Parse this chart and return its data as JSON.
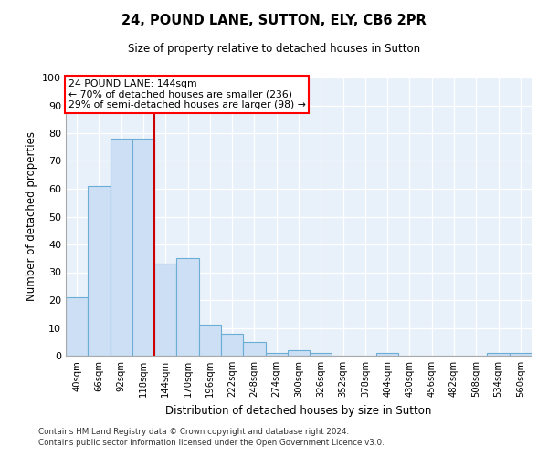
{
  "title": "24, POUND LANE, SUTTON, ELY, CB6 2PR",
  "subtitle": "Size of property relative to detached houses in Sutton",
  "xlabel": "Distribution of detached houses by size in Sutton",
  "ylabel": "Number of detached properties",
  "bar_color": "#ccdff5",
  "bar_edge_color": "#6aadd5",
  "background_color": "#e8f0fa",
  "grid_color": "#ffffff",
  "categories": [
    "40sqm",
    "66sqm",
    "92sqm",
    "118sqm",
    "144sqm",
    "170sqm",
    "196sqm",
    "222sqm",
    "248sqm",
    "274sqm",
    "300sqm",
    "326sqm",
    "352sqm",
    "378sqm",
    "404sqm",
    "430sqm",
    "456sqm",
    "482sqm",
    "508sqm",
    "534sqm",
    "560sqm"
  ],
  "values": [
    21,
    61,
    78,
    78,
    33,
    35,
    11,
    8,
    5,
    1,
    2,
    1,
    0,
    0,
    1,
    0,
    0,
    0,
    0,
    1,
    1
  ],
  "property_line_x": 3.5,
  "annotation_line1": "24 POUND LANE: 144sqm",
  "annotation_line2": "← 70% of detached houses are smaller (236)",
  "annotation_line3": "29% of semi-detached houses are larger (98) →",
  "footer_line1": "Contains HM Land Registry data © Crown copyright and database right 2024.",
  "footer_line2": "Contains public sector information licensed under the Open Government Licence v3.0.",
  "ylim": [
    0,
    100
  ],
  "yticks": [
    0,
    10,
    20,
    30,
    40,
    50,
    60,
    70,
    80,
    90,
    100
  ]
}
